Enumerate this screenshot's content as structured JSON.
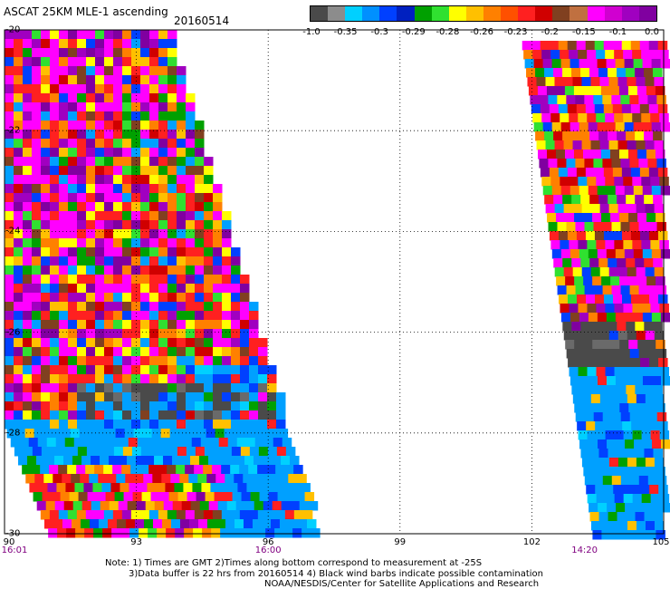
{
  "title": "ASCAT 25KM MLE-1 ascending",
  "date": "20160514",
  "colorbar": {
    "labels": [
      "-1.0",
      "-0.35",
      "-0.3",
      "-0.29",
      "-0.28",
      "-0.26",
      "-0.23",
      "-0.2",
      "-0.15",
      "-0.1",
      "0.0"
    ],
    "colors": [
      "#4a4a4a",
      "#8c8c8c",
      "#00d0ff",
      "#0090ff",
      "#0040ff",
      "#0020c0",
      "#00a000",
      "#30e030",
      "#ffff00",
      "#ffc000",
      "#ff8000",
      "#ff5000",
      "#ff2020",
      "#d00000",
      "#804020",
      "#c07040",
      "#ff00ff",
      "#d000d0",
      "#a000c0",
      "#8000a0"
    ]
  },
  "map_axes": {
    "lon_ticks": [
      "90",
      "93",
      "96",
      "99",
      "102",
      "105"
    ],
    "lat_ticks": [
      "-20",
      "-22",
      "-24",
      "-26",
      "-28",
      "-30"
    ],
    "times": [
      {
        "label": "16:01",
        "lon": 90
      },
      {
        "label": "16:00",
        "lon": 96
      },
      {
        "label": "14:20",
        "lon": 103.2
      }
    ]
  },
  "notes": [
    "Note: 1) Times are GMT 2)Times along bottom correspond to measurement at -25S",
    "3)Data buffer is 22 hrs from 20160514 4) Black wind barbs indicate possible contamination",
    "NOAA/NESDIS/Center for Satellite Applications and Research"
  ]
}
